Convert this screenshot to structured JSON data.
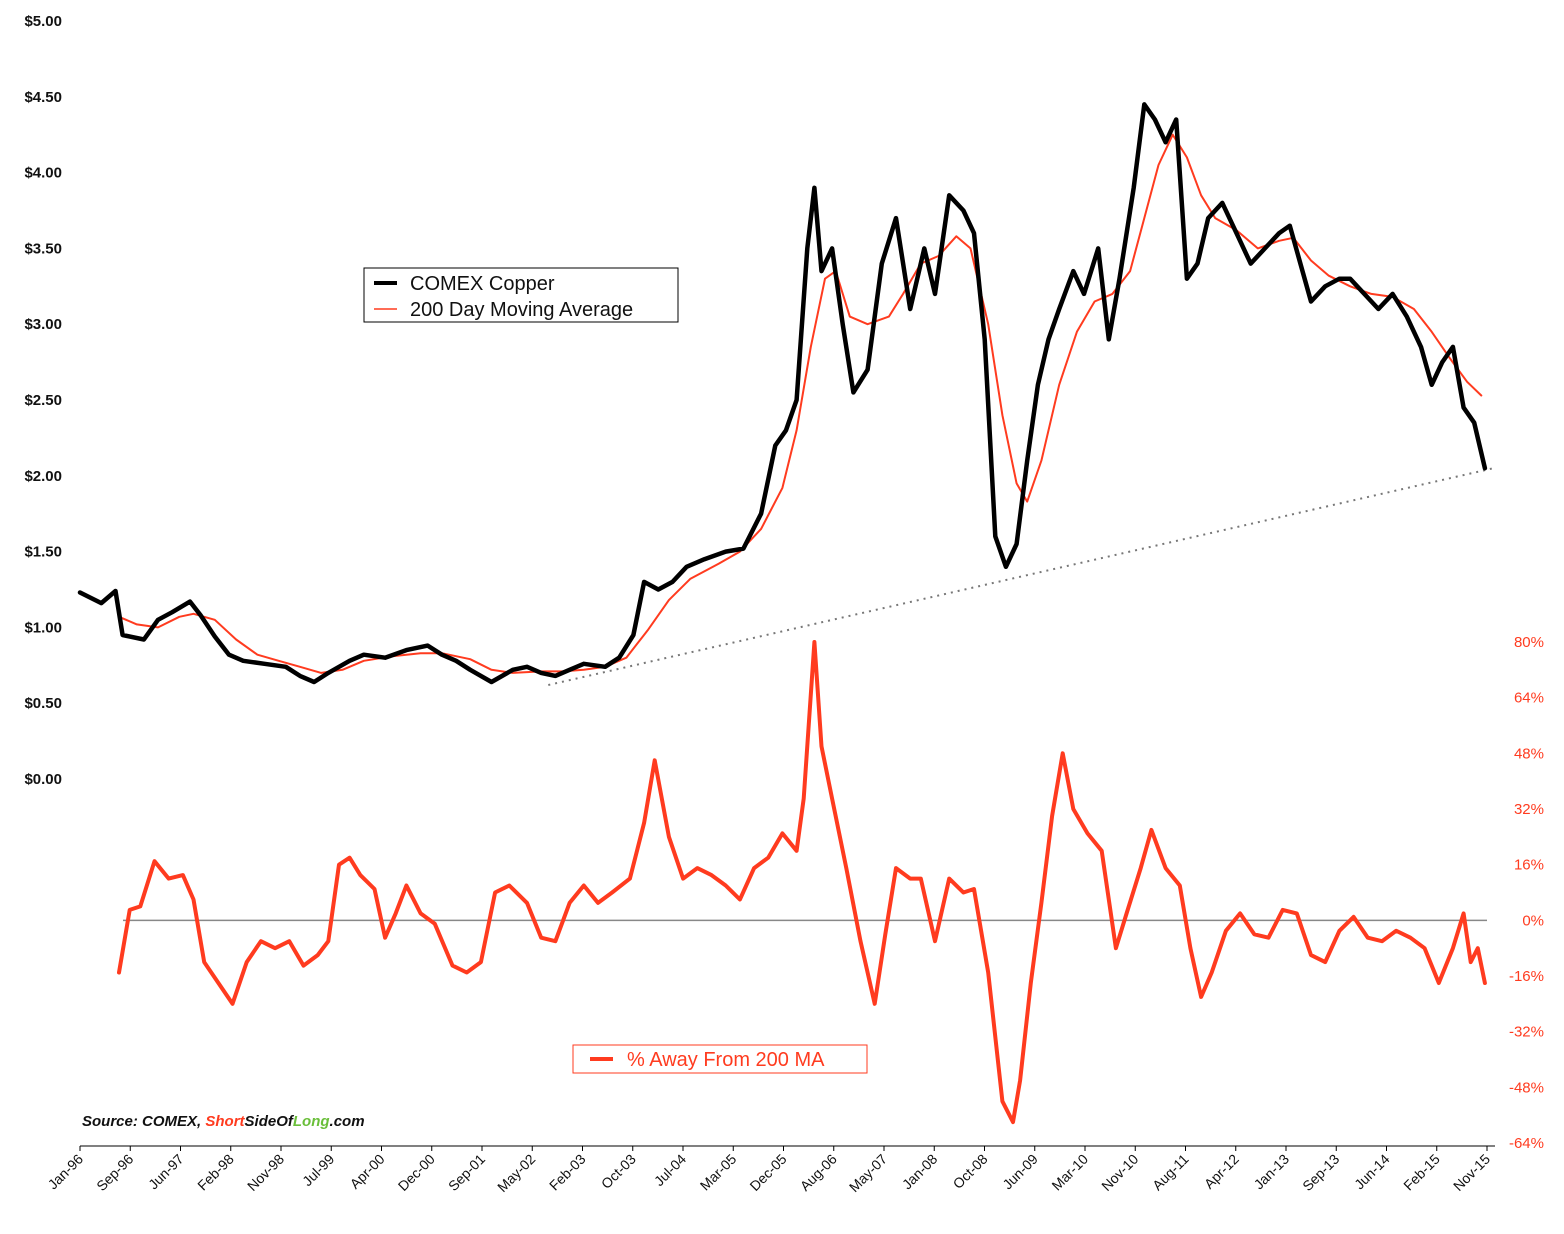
{
  "colors": {
    "price": "#000000",
    "ma": "#ff3b1f",
    "pct": "#ff3b1f",
    "trend": "#777777",
    "zero": "#888888",
    "source_accent": "#ff3b1f",
    "source_accent2": "#6abf3a"
  },
  "source": {
    "prefix": "Source: COMEX, ",
    "part1": "Short",
    "part2": "SideOf",
    "part3": "Long",
    "part4": ".com"
  },
  "chart_data": {
    "type": "line",
    "x_labels": [
      "Jan-96",
      "Sep-96",
      "Jun-97",
      "Feb-98",
      "Nov-98",
      "Jul-99",
      "Apr-00",
      "Dec-00",
      "Sep-01",
      "May-02",
      "Feb-03",
      "Oct-03",
      "Jul-04",
      "Mar-05",
      "Dec-05",
      "Aug-06",
      "May-07",
      "Jan-08",
      "Oct-08",
      "Jun-09",
      "Mar-10",
      "Nov-10",
      "Aug-11",
      "Apr-12",
      "Jan-13",
      "Sep-13",
      "Jun-14",
      "Feb-15",
      "Nov-15"
    ],
    "x_range": [
      1996.0,
      2015.83
    ],
    "left_axis": {
      "ticks": [
        "$0.00",
        "$0.50",
        "$1.00",
        "$1.50",
        "$2.00",
        "$2.50",
        "$3.00",
        "$3.50",
        "$4.00",
        "$4.50",
        "$5.00"
      ],
      "range": [
        0,
        5
      ]
    },
    "right_axis": {
      "ticks": [
        "80%",
        "64%",
        "48%",
        "32%",
        "16%",
        "0%",
        "-16%",
        "-32%",
        "-48%",
        "-64%"
      ],
      "range": [
        -64,
        80
      ]
    },
    "legend_top": [
      "COMEX Copper",
      "200 Day Moving Average"
    ],
    "legend_bottom": "% Away From 200 MA",
    "series": [
      {
        "name": "COMEX Copper",
        "axis": "left",
        "points": [
          [
            1996.0,
            1.23
          ],
          [
            1996.3,
            1.16
          ],
          [
            1996.5,
            1.24
          ],
          [
            1996.6,
            0.95
          ],
          [
            1996.9,
            0.92
          ],
          [
            1997.1,
            1.05
          ],
          [
            1997.3,
            1.1
          ],
          [
            1997.55,
            1.17
          ],
          [
            1997.7,
            1.08
          ],
          [
            1997.9,
            0.94
          ],
          [
            1998.1,
            0.82
          ],
          [
            1998.3,
            0.78
          ],
          [
            1998.6,
            0.76
          ],
          [
            1998.9,
            0.74
          ],
          [
            1999.1,
            0.68
          ],
          [
            1999.3,
            0.64
          ],
          [
            1999.5,
            0.7
          ],
          [
            1999.8,
            0.78
          ],
          [
            2000.0,
            0.82
          ],
          [
            2000.3,
            0.8
          ],
          [
            2000.6,
            0.85
          ],
          [
            2000.9,
            0.88
          ],
          [
            2001.1,
            0.82
          ],
          [
            2001.3,
            0.78
          ],
          [
            2001.5,
            0.72
          ],
          [
            2001.8,
            0.64
          ],
          [
            2002.1,
            0.72
          ],
          [
            2002.3,
            0.74
          ],
          [
            2002.5,
            0.7
          ],
          [
            2002.7,
            0.68
          ],
          [
            2002.9,
            0.72
          ],
          [
            2003.1,
            0.76
          ],
          [
            2003.4,
            0.74
          ],
          [
            2003.6,
            0.8
          ],
          [
            2003.8,
            0.95
          ],
          [
            2003.95,
            1.3
          ],
          [
            2004.15,
            1.25
          ],
          [
            2004.35,
            1.3
          ],
          [
            2004.55,
            1.4
          ],
          [
            2004.8,
            1.45
          ],
          [
            2005.1,
            1.5
          ],
          [
            2005.35,
            1.52
          ],
          [
            2005.6,
            1.75
          ],
          [
            2005.8,
            2.2
          ],
          [
            2005.95,
            2.3
          ],
          [
            2006.1,
            2.5
          ],
          [
            2006.25,
            3.5
          ],
          [
            2006.35,
            3.9
          ],
          [
            2006.45,
            3.35
          ],
          [
            2006.6,
            3.5
          ],
          [
            2006.75,
            3.0
          ],
          [
            2006.9,
            2.55
          ],
          [
            2007.1,
            2.7
          ],
          [
            2007.3,
            3.4
          ],
          [
            2007.5,
            3.7
          ],
          [
            2007.7,
            3.1
          ],
          [
            2007.9,
            3.5
          ],
          [
            2008.05,
            3.2
          ],
          [
            2008.25,
            3.85
          ],
          [
            2008.45,
            3.75
          ],
          [
            2008.6,
            3.6
          ],
          [
            2008.75,
            2.9
          ],
          [
            2008.9,
            1.6
          ],
          [
            2009.05,
            1.4
          ],
          [
            2009.2,
            1.55
          ],
          [
            2009.35,
            2.1
          ],
          [
            2009.5,
            2.6
          ],
          [
            2009.65,
            2.9
          ],
          [
            2009.8,
            3.1
          ],
          [
            2010.0,
            3.35
          ],
          [
            2010.15,
            3.2
          ],
          [
            2010.35,
            3.5
          ],
          [
            2010.5,
            2.9
          ],
          [
            2010.65,
            3.3
          ],
          [
            2010.85,
            3.9
          ],
          [
            2011.0,
            4.45
          ],
          [
            2011.15,
            4.35
          ],
          [
            2011.3,
            4.2
          ],
          [
            2011.45,
            4.35
          ],
          [
            2011.6,
            3.3
          ],
          [
            2011.75,
            3.4
          ],
          [
            2011.9,
            3.7
          ],
          [
            2012.1,
            3.8
          ],
          [
            2012.3,
            3.6
          ],
          [
            2012.5,
            3.4
          ],
          [
            2012.7,
            3.5
          ],
          [
            2012.9,
            3.6
          ],
          [
            2013.05,
            3.65
          ],
          [
            2013.2,
            3.4
          ],
          [
            2013.35,
            3.15
          ],
          [
            2013.55,
            3.25
          ],
          [
            2013.75,
            3.3
          ],
          [
            2013.9,
            3.3
          ],
          [
            2014.1,
            3.2
          ],
          [
            2014.3,
            3.1
          ],
          [
            2014.5,
            3.2
          ],
          [
            2014.7,
            3.05
          ],
          [
            2014.9,
            2.85
          ],
          [
            2015.05,
            2.6
          ],
          [
            2015.2,
            2.75
          ],
          [
            2015.35,
            2.85
          ],
          [
            2015.5,
            2.45
          ],
          [
            2015.65,
            2.35
          ],
          [
            2015.8,
            2.05
          ]
        ]
      },
      {
        "name": "200 Day Moving Average",
        "axis": "left",
        "points": [
          [
            1996.55,
            1.07
          ],
          [
            1996.8,
            1.02
          ],
          [
            1997.1,
            1.0
          ],
          [
            1997.4,
            1.07
          ],
          [
            1997.6,
            1.09
          ],
          [
            1997.9,
            1.05
          ],
          [
            1998.2,
            0.92
          ],
          [
            1998.5,
            0.82
          ],
          [
            1998.8,
            0.78
          ],
          [
            1999.1,
            0.74
          ],
          [
            1999.4,
            0.7
          ],
          [
            1999.7,
            0.72
          ],
          [
            2000.0,
            0.78
          ],
          [
            2000.4,
            0.81
          ],
          [
            2000.8,
            0.83
          ],
          [
            2001.1,
            0.83
          ],
          [
            2001.5,
            0.79
          ],
          [
            2001.8,
            0.72
          ],
          [
            2002.1,
            0.7
          ],
          [
            2002.5,
            0.71
          ],
          [
            2002.8,
            0.71
          ],
          [
            2003.1,
            0.72
          ],
          [
            2003.4,
            0.74
          ],
          [
            2003.7,
            0.8
          ],
          [
            2004.0,
            0.98
          ],
          [
            2004.3,
            1.18
          ],
          [
            2004.6,
            1.32
          ],
          [
            2005.0,
            1.42
          ],
          [
            2005.3,
            1.5
          ],
          [
            2005.6,
            1.65
          ],
          [
            2005.9,
            1.92
          ],
          [
            2006.1,
            2.3
          ],
          [
            2006.3,
            2.85
          ],
          [
            2006.5,
            3.3
          ],
          [
            2006.65,
            3.35
          ],
          [
            2006.85,
            3.05
          ],
          [
            2007.1,
            3.0
          ],
          [
            2007.4,
            3.05
          ],
          [
            2007.6,
            3.2
          ],
          [
            2007.85,
            3.4
          ],
          [
            2008.1,
            3.45
          ],
          [
            2008.35,
            3.58
          ],
          [
            2008.55,
            3.5
          ],
          [
            2008.8,
            3.0
          ],
          [
            2009.0,
            2.4
          ],
          [
            2009.2,
            1.95
          ],
          [
            2009.35,
            1.83
          ],
          [
            2009.55,
            2.1
          ],
          [
            2009.8,
            2.6
          ],
          [
            2010.05,
            2.95
          ],
          [
            2010.3,
            3.15
          ],
          [
            2010.55,
            3.2
          ],
          [
            2010.8,
            3.35
          ],
          [
            2011.0,
            3.7
          ],
          [
            2011.2,
            4.05
          ],
          [
            2011.4,
            4.25
          ],
          [
            2011.6,
            4.1
          ],
          [
            2011.8,
            3.85
          ],
          [
            2012.0,
            3.7
          ],
          [
            2012.3,
            3.62
          ],
          [
            2012.6,
            3.5
          ],
          [
            2012.9,
            3.55
          ],
          [
            2013.1,
            3.57
          ],
          [
            2013.35,
            3.42
          ],
          [
            2013.6,
            3.32
          ],
          [
            2013.9,
            3.25
          ],
          [
            2014.2,
            3.2
          ],
          [
            2014.5,
            3.18
          ],
          [
            2014.8,
            3.1
          ],
          [
            2015.05,
            2.95
          ],
          [
            2015.3,
            2.78
          ],
          [
            2015.55,
            2.62
          ],
          [
            2015.75,
            2.53
          ]
        ]
      },
      {
        "name": "% Away From 200 MA",
        "axis": "right",
        "points": [
          [
            1996.55,
            -15
          ],
          [
            1996.7,
            3
          ],
          [
            1996.85,
            4
          ],
          [
            1997.05,
            17
          ],
          [
            1997.25,
            12
          ],
          [
            1997.45,
            13
          ],
          [
            1997.6,
            6
          ],
          [
            1997.75,
            -12
          ],
          [
            1997.95,
            -18
          ],
          [
            1998.15,
            -24
          ],
          [
            1998.35,
            -12
          ],
          [
            1998.55,
            -6
          ],
          [
            1998.75,
            -8
          ],
          [
            1998.95,
            -6
          ],
          [
            1999.15,
            -13
          ],
          [
            1999.35,
            -10
          ],
          [
            1999.5,
            -6
          ],
          [
            1999.65,
            16
          ],
          [
            1999.8,
            18
          ],
          [
            1999.95,
            13
          ],
          [
            2000.15,
            9
          ],
          [
            2000.3,
            -5
          ],
          [
            2000.45,
            2
          ],
          [
            2000.6,
            10
          ],
          [
            2000.8,
            2
          ],
          [
            2001.0,
            -1
          ],
          [
            2001.25,
            -13
          ],
          [
            2001.45,
            -15
          ],
          [
            2001.65,
            -12
          ],
          [
            2001.85,
            8
          ],
          [
            2002.05,
            10
          ],
          [
            2002.3,
            5
          ],
          [
            2002.5,
            -5
          ],
          [
            2002.7,
            -6
          ],
          [
            2002.9,
            5
          ],
          [
            2003.1,
            10
          ],
          [
            2003.3,
            5
          ],
          [
            2003.5,
            8
          ],
          [
            2003.75,
            12
          ],
          [
            2003.95,
            28
          ],
          [
            2004.1,
            46
          ],
          [
            2004.3,
            24
          ],
          [
            2004.5,
            12
          ],
          [
            2004.7,
            15
          ],
          [
            2004.9,
            13
          ],
          [
            2005.1,
            10
          ],
          [
            2005.3,
            6
          ],
          [
            2005.5,
            15
          ],
          [
            2005.7,
            18
          ],
          [
            2005.9,
            25
          ],
          [
            2006.1,
            20
          ],
          [
            2006.2,
            35
          ],
          [
            2006.35,
            80
          ],
          [
            2006.45,
            50
          ],
          [
            2006.6,
            35
          ],
          [
            2006.8,
            15
          ],
          [
            2007.0,
            -6
          ],
          [
            2007.2,
            -24
          ],
          [
            2007.35,
            -4
          ],
          [
            2007.5,
            15
          ],
          [
            2007.7,
            12
          ],
          [
            2007.85,
            12
          ],
          [
            2008.05,
            -6
          ],
          [
            2008.25,
            12
          ],
          [
            2008.45,
            8
          ],
          [
            2008.6,
            9
          ],
          [
            2008.8,
            -15
          ],
          [
            2009.0,
            -52
          ],
          [
            2009.15,
            -58
          ],
          [
            2009.25,
            -46
          ],
          [
            2009.4,
            -18
          ],
          [
            2009.55,
            5
          ],
          [
            2009.7,
            30
          ],
          [
            2009.85,
            48
          ],
          [
            2010.0,
            32
          ],
          [
            2010.2,
            25
          ],
          [
            2010.4,
            20
          ],
          [
            2010.6,
            -8
          ],
          [
            2010.75,
            2
          ],
          [
            2010.95,
            15
          ],
          [
            2011.1,
            26
          ],
          [
            2011.3,
            15
          ],
          [
            2011.5,
            10
          ],
          [
            2011.65,
            -8
          ],
          [
            2011.8,
            -22
          ],
          [
            2011.95,
            -15
          ],
          [
            2012.15,
            -3
          ],
          [
            2012.35,
            2
          ],
          [
            2012.55,
            -4
          ],
          [
            2012.75,
            -5
          ],
          [
            2012.95,
            3
          ],
          [
            2013.15,
            2
          ],
          [
            2013.35,
            -10
          ],
          [
            2013.55,
            -12
          ],
          [
            2013.75,
            -3
          ],
          [
            2013.95,
            1
          ],
          [
            2014.15,
            -5
          ],
          [
            2014.35,
            -6
          ],
          [
            2014.55,
            -3
          ],
          [
            2014.75,
            -5
          ],
          [
            2014.95,
            -8
          ],
          [
            2015.15,
            -18
          ],
          [
            2015.35,
            -8
          ],
          [
            2015.5,
            2
          ],
          [
            2015.6,
            -12
          ],
          [
            2015.7,
            -8
          ],
          [
            2015.8,
            -18
          ]
        ]
      }
    ],
    "trendline": {
      "from": [
        2002.6,
        0.62
      ],
      "to": [
        2015.92,
        2.05
      ]
    }
  }
}
